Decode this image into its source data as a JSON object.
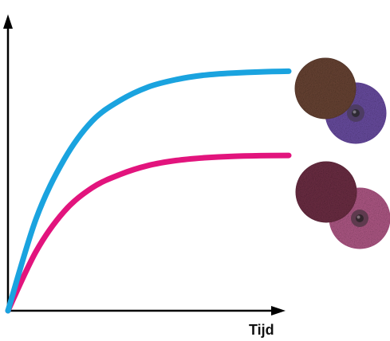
{
  "chart_data": {
    "type": "line",
    "title": "",
    "xlabel": "Tijd",
    "ylabel": "",
    "xlim": [
      0,
      10
    ],
    "ylim": [
      0,
      10
    ],
    "grid": false,
    "legend": "none",
    "series": [
      {
        "color": "#1aa3df",
        "marker_icon": "brown-and-purple-sanding-disc-icon",
        "x": [
          0,
          1,
          2,
          3,
          4,
          5,
          6,
          7,
          8,
          9,
          10
        ],
        "y": [
          0,
          3.1,
          5.1,
          6.4,
          7.1,
          7.55,
          7.8,
          7.95,
          8.02,
          8.06,
          8.08
        ]
      },
      {
        "color": "#e2147d",
        "marker_icon": "maroon-and-pink-sanding-disc-icon",
        "x": [
          0,
          1,
          2,
          3,
          4,
          5,
          6,
          7,
          8,
          9,
          10
        ],
        "y": [
          0,
          2.0,
          3.35,
          4.15,
          4.6,
          4.9,
          5.07,
          5.16,
          5.21,
          5.23,
          5.24
        ]
      }
    ]
  }
}
